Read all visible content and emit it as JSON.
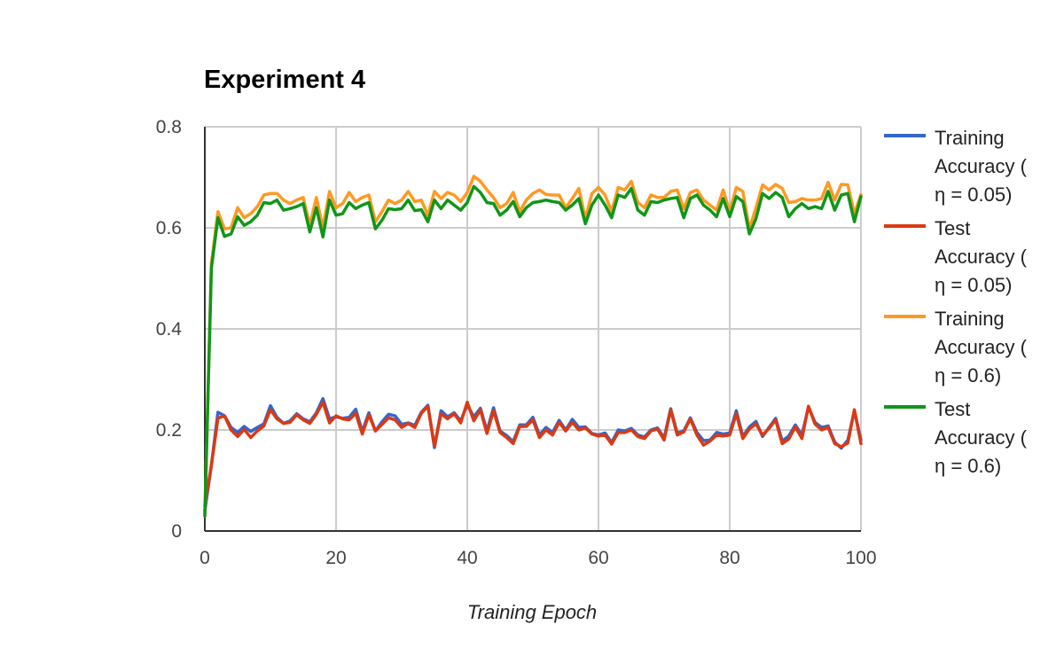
{
  "chart_data": {
    "type": "line",
    "title": "Experiment 4",
    "xlabel": "Training Epoch",
    "ylabel": "",
    "xlim": [
      0,
      100
    ],
    "ylim": [
      0,
      0.8
    ],
    "x_ticks": [
      "0",
      "20",
      "40",
      "60",
      "80",
      "100"
    ],
    "y_ticks": [
      "0",
      "0.2",
      "0.4",
      "0.6",
      "0.8"
    ],
    "grid": true,
    "legend_position": "right",
    "series": [
      {
        "name": "Training Accuracy ( η = 0.05)",
        "legend_lines": [
          "Training",
          "Accuracy (",
          "η = 0.05)"
        ],
        "color": "#3366cc",
        "values": [
          0.04,
          0.13,
          0.235,
          0.228,
          0.205,
          0.195,
          0.207,
          0.197,
          0.205,
          0.212,
          0.248,
          0.225,
          0.213,
          0.218,
          0.232,
          0.222,
          0.216,
          0.234,
          0.262,
          0.222,
          0.226,
          0.223,
          0.225,
          0.241,
          0.197,
          0.234,
          0.198,
          0.216,
          0.231,
          0.228,
          0.211,
          0.214,
          0.209,
          0.235,
          0.249,
          0.165,
          0.238,
          0.226,
          0.234,
          0.218,
          0.25,
          0.226,
          0.243,
          0.198,
          0.244,
          0.198,
          0.189,
          0.177,
          0.21,
          0.21,
          0.225,
          0.19,
          0.205,
          0.195,
          0.219,
          0.2,
          0.221,
          0.205,
          0.206,
          0.193,
          0.19,
          0.194,
          0.175,
          0.2,
          0.198,
          0.203,
          0.19,
          0.186,
          0.2,
          0.204,
          0.184,
          0.242,
          0.194,
          0.198,
          0.224,
          0.195,
          0.179,
          0.18,
          0.195,
          0.192,
          0.194,
          0.238,
          0.187,
          0.206,
          0.217,
          0.187,
          0.205,
          0.223,
          0.178,
          0.188,
          0.21,
          0.19,
          0.245,
          0.215,
          0.205,
          0.208,
          0.176,
          0.164,
          0.18,
          0.238,
          0.18
        ]
      },
      {
        "name": "Test Accuracy ( η = 0.05)",
        "legend_lines": [
          "Test",
          "Accuracy (",
          "η = 0.05)"
        ],
        "color": "#dc3912",
        "values": [
          0.05,
          0.13,
          0.223,
          0.228,
          0.2,
          0.187,
          0.201,
          0.185,
          0.198,
          0.208,
          0.24,
          0.222,
          0.213,
          0.215,
          0.23,
          0.22,
          0.213,
          0.231,
          0.255,
          0.214,
          0.228,
          0.222,
          0.22,
          0.233,
          0.192,
          0.23,
          0.198,
          0.211,
          0.224,
          0.22,
          0.205,
          0.213,
          0.205,
          0.233,
          0.247,
          0.168,
          0.232,
          0.222,
          0.232,
          0.214,
          0.255,
          0.218,
          0.24,
          0.193,
          0.238,
          0.195,
          0.185,
          0.173,
          0.207,
          0.207,
          0.22,
          0.185,
          0.2,
          0.19,
          0.215,
          0.198,
          0.215,
          0.2,
          0.204,
          0.192,
          0.188,
          0.19,
          0.172,
          0.195,
          0.195,
          0.2,
          0.187,
          0.183,
          0.198,
          0.202,
          0.18,
          0.24,
          0.19,
          0.196,
          0.222,
          0.19,
          0.17,
          0.178,
          0.19,
          0.188,
          0.19,
          0.232,
          0.183,
          0.202,
          0.212,
          0.19,
          0.203,
          0.22,
          0.173,
          0.182,
          0.206,
          0.183,
          0.247,
          0.212,
          0.2,
          0.205,
          0.173,
          0.167,
          0.174,
          0.24,
          0.173
        ]
      },
      {
        "name": "Training Accuracy ( η = 0.6)",
        "legend_lines": [
          "Training",
          "Accuracy (",
          "η = 0.6)"
        ],
        "color": "#ff9922",
        "values": [
          0.03,
          0.53,
          0.632,
          0.598,
          0.6,
          0.64,
          0.62,
          0.628,
          0.642,
          0.665,
          0.668,
          0.668,
          0.655,
          0.648,
          0.655,
          0.66,
          0.605,
          0.66,
          0.6,
          0.672,
          0.64,
          0.648,
          0.67,
          0.652,
          0.66,
          0.665,
          0.612,
          0.632,
          0.655,
          0.648,
          0.655,
          0.672,
          0.652,
          0.655,
          0.625,
          0.672,
          0.658,
          0.67,
          0.665,
          0.652,
          0.67,
          0.702,
          0.692,
          0.675,
          0.66,
          0.64,
          0.648,
          0.67,
          0.632,
          0.655,
          0.668,
          0.675,
          0.666,
          0.665,
          0.665,
          0.64,
          0.658,
          0.678,
          0.618,
          0.668,
          0.68,
          0.665,
          0.632,
          0.68,
          0.675,
          0.692,
          0.65,
          0.64,
          0.665,
          0.66,
          0.66,
          0.672,
          0.675,
          0.638,
          0.67,
          0.675,
          0.655,
          0.645,
          0.635,
          0.675,
          0.632,
          0.68,
          0.672,
          0.598,
          0.64,
          0.685,
          0.675,
          0.686,
          0.678,
          0.65,
          0.652,
          0.658,
          0.655,
          0.655,
          0.658,
          0.69,
          0.655,
          0.686,
          0.685,
          0.628,
          0.666
        ]
      },
      {
        "name": "Test Accuracy ( η = 0.6)",
        "legend_lines": [
          "Test",
          "Accuracy (",
          "η = 0.6)"
        ],
        "color": "#109618",
        "values": [
          0.03,
          0.52,
          0.62,
          0.583,
          0.588,
          0.622,
          0.605,
          0.612,
          0.625,
          0.65,
          0.648,
          0.655,
          0.635,
          0.638,
          0.642,
          0.648,
          0.592,
          0.64,
          0.582,
          0.655,
          0.625,
          0.628,
          0.65,
          0.638,
          0.645,
          0.65,
          0.598,
          0.615,
          0.638,
          0.636,
          0.638,
          0.655,
          0.634,
          0.636,
          0.612,
          0.655,
          0.638,
          0.655,
          0.645,
          0.635,
          0.65,
          0.682,
          0.67,
          0.65,
          0.648,
          0.625,
          0.635,
          0.652,
          0.622,
          0.64,
          0.65,
          0.652,
          0.655,
          0.652,
          0.65,
          0.635,
          0.645,
          0.658,
          0.608,
          0.645,
          0.665,
          0.645,
          0.62,
          0.665,
          0.66,
          0.678,
          0.635,
          0.625,
          0.652,
          0.65,
          0.655,
          0.658,
          0.66,
          0.62,
          0.658,
          0.665,
          0.645,
          0.635,
          0.622,
          0.658,
          0.622,
          0.662,
          0.652,
          0.588,
          0.618,
          0.668,
          0.658,
          0.67,
          0.66,
          0.622,
          0.638,
          0.648,
          0.638,
          0.642,
          0.638,
          0.672,
          0.635,
          0.665,
          0.668,
          0.612,
          0.662
        ]
      }
    ]
  }
}
